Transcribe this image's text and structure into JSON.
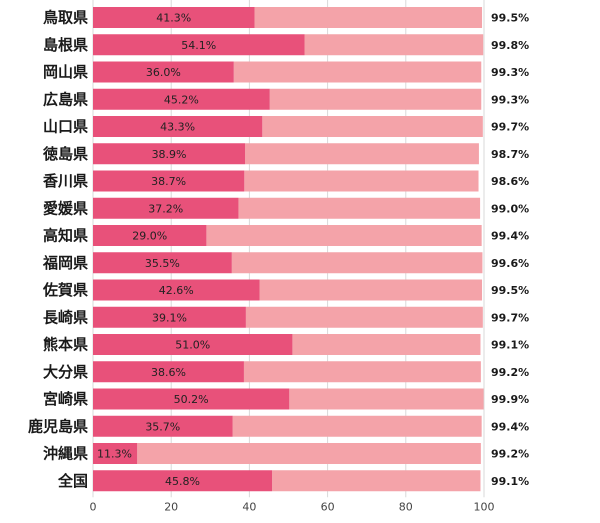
{
  "chart_data": {
    "type": "bar",
    "orientation": "horizontal",
    "stacked": true,
    "categories": [
      "鳥取県",
      "島根県",
      "岡山県",
      "広島県",
      "山口県",
      "徳島県",
      "香川県",
      "愛媛県",
      "高知県",
      "福岡県",
      "佐賀県",
      "長崎県",
      "熊本県",
      "大分県",
      "宮崎県",
      "鹿児島県",
      "沖縄県",
      "全国"
    ],
    "series": [
      {
        "values": [
          41.3,
          54.1,
          36.0,
          45.2,
          43.3,
          38.9,
          38.7,
          37.2,
          29.0,
          35.5,
          42.6,
          39.1,
          51.0,
          38.6,
          50.2,
          35.7,
          11.3,
          45.8
        ],
        "labels": [
          "41.3%",
          "54.1%",
          "36.0%",
          "45.2%",
          "43.3%",
          "38.9%",
          "38.7%",
          "37.2%",
          "29.0%",
          "35.5%",
          "42.6%",
          "39.1%",
          "51.0%",
          "38.6%",
          "50.2%",
          "35.7%",
          "11.3%",
          "45.8%"
        ]
      },
      {
        "values": [
          58.2,
          45.7,
          63.3,
          54.1,
          56.4,
          59.8,
          59.9,
          61.8,
          70.4,
          64.1,
          56.9,
          60.6,
          48.1,
          60.6,
          49.7,
          63.7,
          87.9,
          53.3
        ]
      }
    ],
    "totals": [
      "99.5%",
      "99.8%",
      "99.3%",
      "99.3%",
      "99.7%",
      "98.7%",
      "98.6%",
      "99.0%",
      "99.4%",
      "99.6%",
      "99.5%",
      "99.7%",
      "99.1%",
      "99.2%",
      "99.9%",
      "99.4%",
      "99.2%",
      "99.1%"
    ],
    "xticks": [
      "0",
      "20",
      "40",
      "60",
      "80",
      "100"
    ],
    "xlim": [
      0,
      100
    ],
    "grid": true,
    "colors": {
      "primary": "#e8517a",
      "secondary": "#f4a3a9",
      "grid": "#d9d9d9"
    }
  }
}
